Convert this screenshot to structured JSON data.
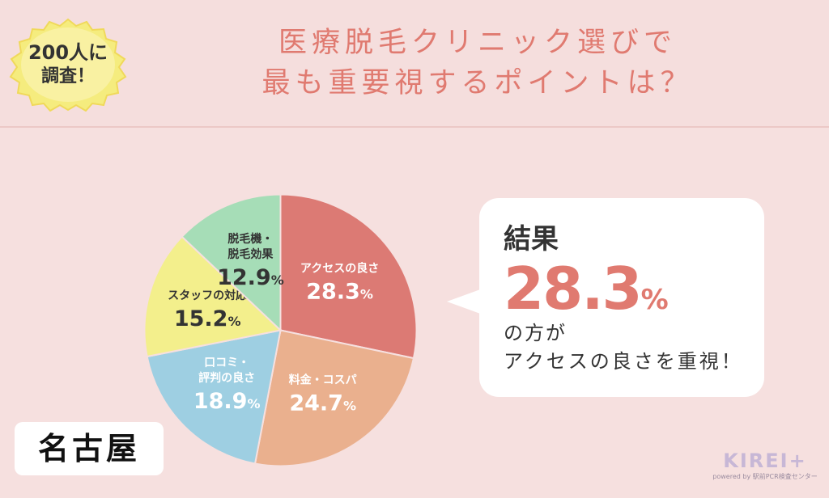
{
  "badge": {
    "line1": "200人に",
    "line2": "調査！"
  },
  "title": {
    "line1": "医療脱毛クリニック選びで",
    "line2": "最も重要視するポイントは？"
  },
  "result": {
    "heading": "結果",
    "percent_value": "28.3",
    "percent_unit": "%",
    "line1": "の方が",
    "line2": "アクセスの良さを重視！"
  },
  "city": "名古屋",
  "logo": {
    "main": "KIREI+",
    "sub": "powered by 駅前PCR検査センター"
  },
  "colors": {
    "title": "#e07a70",
    "access": "#dc7a74",
    "price": "#eab08e",
    "reviews": "#9ecfe2",
    "staff": "#f3ef8c",
    "machine": "#a6ddb7"
  },
  "chart_data": {
    "type": "pie",
    "unit": "%",
    "slices": [
      {
        "label_lines": [
          "アクセスの良さ"
        ],
        "value": 28.3,
        "color": "#dc7a74"
      },
      {
        "label_lines": [
          "料金・コスパ"
        ],
        "value": 24.7,
        "color": "#eab08e"
      },
      {
        "label_lines": [
          "口コミ・",
          "評判の良さ"
        ],
        "value": 18.9,
        "color": "#9ecfe2"
      },
      {
        "label_lines": [
          "スタッフの対応"
        ],
        "value": 15.2,
        "color": "#f3ef8c"
      },
      {
        "label_lines": [
          "脱毛機・",
          "脱毛効果"
        ],
        "value": 12.9,
        "color": "#a6ddb7"
      }
    ]
  }
}
